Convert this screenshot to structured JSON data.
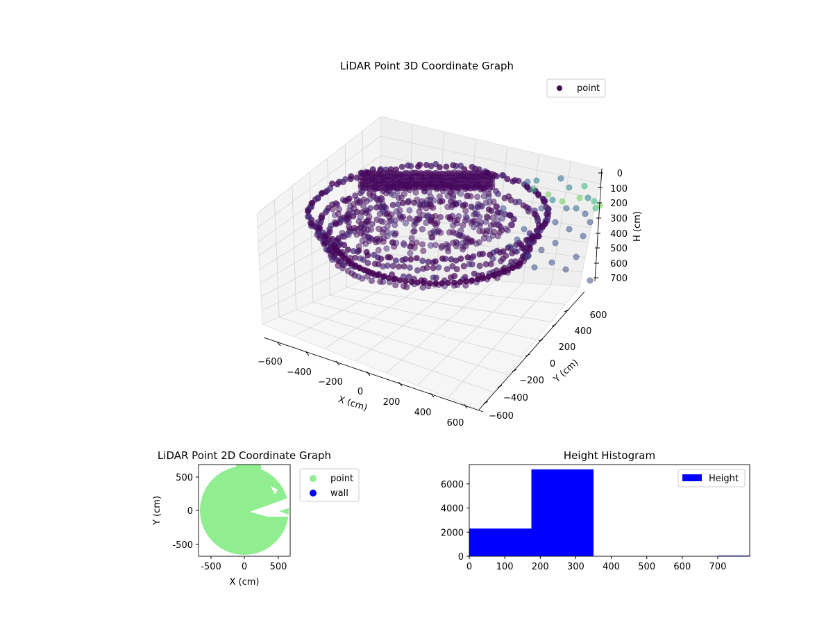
{
  "chart_data": [
    {
      "type": "scatter",
      "projection": "3d",
      "title": "LiDAR Point 3D Coordinate Graph",
      "xlabel": "X (cm)",
      "ylabel": "Y (cm)",
      "zlabel": "H (cm)",
      "xlim": [
        -700,
        700
      ],
      "ylim": [
        -700,
        700
      ],
      "zlim": [
        750,
        0
      ],
      "xticks": [
        "−600",
        "−400",
        "−200",
        "0",
        "200",
        "400",
        "600"
      ],
      "yticks": [
        "−600",
        "−400",
        "−200",
        "0",
        "200",
        "400",
        "600"
      ],
      "zticks": [
        "0",
        "100",
        "200",
        "300",
        "400",
        "500",
        "600",
        "700"
      ],
      "z_axis_inverted": true,
      "colormap": "viridis",
      "legend": {
        "placement": "upper right",
        "entries": [
          "point"
        ]
      },
      "series": [
        {
          "name": "point",
          "color": "#440154",
          "description_points": [
            {
              "x": 0,
              "y": 0,
              "z": 260
            },
            {
              "x": 500,
              "y": 300,
              "z": 250
            },
            {
              "x": 600,
              "y": 0,
              "z": 210
            },
            {
              "x": 550,
              "y": -200,
              "z": 230
            },
            {
              "x": 400,
              "y": -450,
              "z": 240
            },
            {
              "x": 0,
              "y": -550,
              "z": 250
            },
            {
              "x": -450,
              "y": -400,
              "z": 260
            },
            {
              "x": -600,
              "y": 0,
              "z": 240
            },
            {
              "x": -450,
              "y": 450,
              "z": 220
            },
            {
              "x": 0,
              "y": 550,
              "z": 230
            },
            {
              "x": 400,
              "y": 450,
              "z": 270
            },
            {
              "x": 600,
              "y": 400,
              "z": 180
            },
            {
              "x": 650,
              "y": 500,
              "z": 150
            }
          ]
        }
      ],
      "grid": true
    },
    {
      "type": "scatter",
      "title": "LiDAR Point 2D Coordinate Graph",
      "xlabel": "X (cm)",
      "ylabel": "Y (cm)",
      "xlim": [
        -680,
        680
      ],
      "ylim": [
        -680,
        680
      ],
      "xticks": [
        -500,
        0,
        500
      ],
      "yticks": [
        -500,
        0,
        500
      ],
      "legend": {
        "placement": "outside right",
        "entries": [
          "point",
          "wall"
        ]
      },
      "series": [
        {
          "name": "point",
          "color": "#90ee90",
          "region": "disc of radius ~650 centred at (0,0) with an empty wedge toward +X"
        },
        {
          "name": "wall",
          "color": "#0000ff",
          "values": []
        }
      ]
    },
    {
      "type": "bar",
      "subtype": "histogram",
      "title": "Height Histogram",
      "xlim": [
        0,
        790
      ],
      "ylim": [
        0,
        7600
      ],
      "xticks": [
        0,
        100,
        200,
        300,
        400,
        500,
        600,
        700
      ],
      "yticks": [
        0,
        2000,
        4000,
        6000
      ],
      "legend": {
        "placement": "upper right",
        "entries": [
          "Height"
        ]
      },
      "series": [
        {
          "name": "Height",
          "color": "#0000ff",
          "bins": [
            {
              "from": 0,
              "to": 175,
              "count": 2300
            },
            {
              "from": 175,
              "to": 350,
              "count": 7200
            },
            {
              "from": 350,
              "to": 525,
              "count": 0
            },
            {
              "from": 525,
              "to": 700,
              "count": 0
            },
            {
              "from": 700,
              "to": 790,
              "count": 60
            }
          ]
        }
      ]
    }
  ]
}
